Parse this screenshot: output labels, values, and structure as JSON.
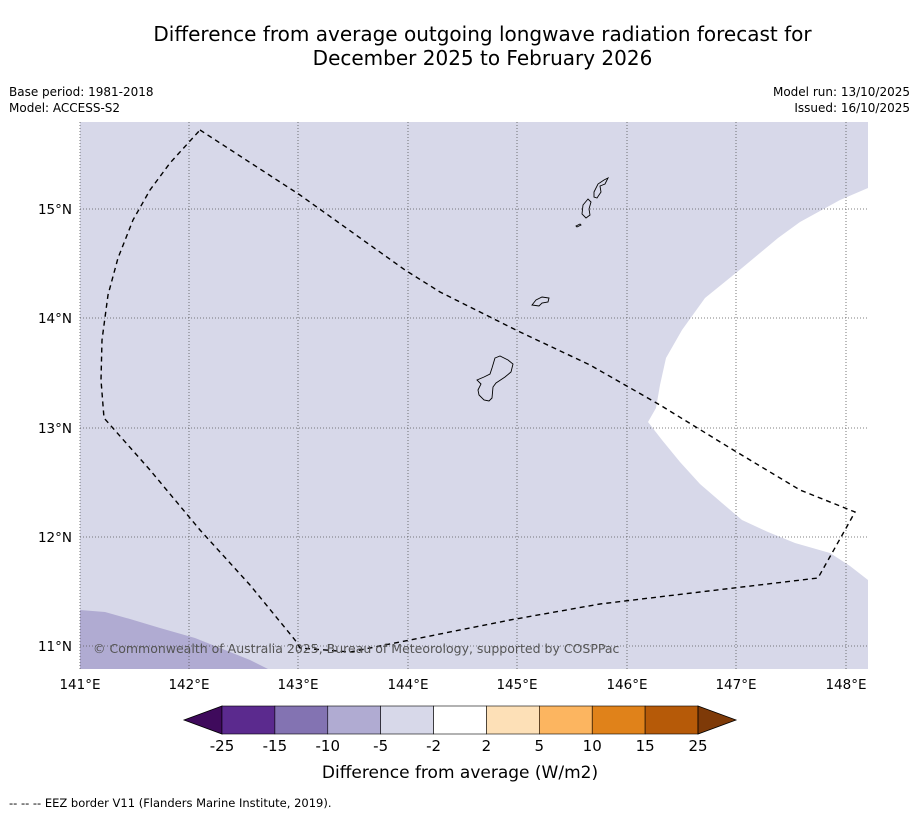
{
  "title": {
    "line1": "Difference from average outgoing longwave radiation forecast for",
    "line2": "December 2025 to February 2026"
  },
  "meta": {
    "base_period": "Base period: 1981-2018",
    "model": "Model: ACCESS-S2",
    "model_run": "Model run: 13/10/2025",
    "issued": "Issued: 16/10/2025"
  },
  "map": {
    "lon_labels": [
      "141°E",
      "142°E",
      "143°E",
      "144°E",
      "145°E",
      "146°E",
      "147°E",
      "148°E"
    ],
    "lat_labels": [
      "15°N",
      "14°N",
      "13°N",
      "12°N",
      "11°N"
    ],
    "credit": "© Commonwealth of Australia 2025, Bureau of Meteorology, supported by COSPPac",
    "colors": {
      "light_purple": "#d7d8e9",
      "mid_purple": "#b0abd2",
      "white": "#ffffff"
    }
  },
  "colorbar": {
    "ticks": [
      "-25",
      "-15",
      "-10",
      "-5",
      "-2",
      "2",
      "5",
      "10",
      "15",
      "25"
    ],
    "colors": [
      "#3f0a5c",
      "#5b2a8e",
      "#8373b2",
      "#b0abd2",
      "#d7d8e9",
      "#ffffff",
      "#fde0b7",
      "#fcb560",
      "#e0821a",
      "#b65a08",
      "#7e3a08"
    ],
    "title": "Difference from average (W/m2)"
  },
  "footnote": "--  --  -- EEZ border V11 (Flanders Marine Institute, 2019)."
}
